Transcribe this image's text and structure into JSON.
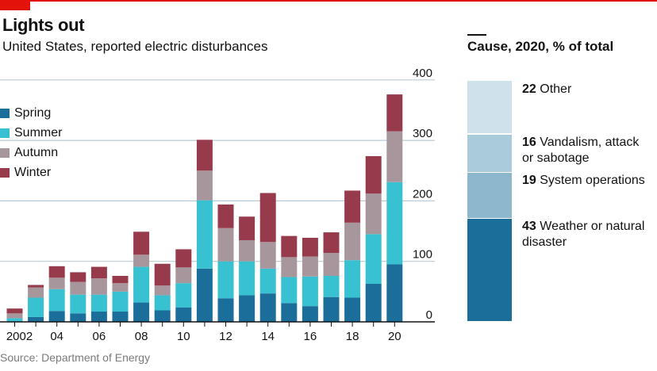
{
  "header": {
    "title": "Lights out",
    "subtitle": "United States, reported electric disturbances"
  },
  "source": "Source: Department of Energy",
  "colors": {
    "spring": "#1b6d9a",
    "summer": "#37c1d1",
    "autumn": "#a8969d",
    "winter": "#973b4c",
    "grid": "#b9cbd5",
    "axis": "#121212"
  },
  "chart_data": [
    {
      "type": "bar",
      "stacked": true,
      "categories": [
        "2002",
        "03",
        "04",
        "05",
        "06",
        "07",
        "08",
        "09",
        "10",
        "11",
        "12",
        "13",
        "14",
        "15",
        "16",
        "17",
        "18",
        "19",
        "20"
      ],
      "x_tick_labels": [
        "2002",
        "04",
        "06",
        "08",
        "10",
        "12",
        "14",
        "16",
        "18",
        "20"
      ],
      "series": [
        {
          "name": "Spring",
          "values": [
            1,
            8,
            18,
            14,
            17,
            17,
            32,
            19,
            24,
            88,
            39,
            44,
            47,
            31,
            26,
            41,
            40,
            63,
            95
          ]
        },
        {
          "name": "Summer",
          "values": [
            5,
            32,
            36,
            31,
            28,
            33,
            59,
            25,
            40,
            113,
            61,
            56,
            41,
            43,
            49,
            35,
            62,
            82,
            136
          ]
        },
        {
          "name": "Autumn",
          "values": [
            8,
            17,
            19,
            21,
            27,
            14,
            20,
            16,
            26,
            49,
            55,
            35,
            44,
            33,
            33,
            38,
            62,
            67,
            84
          ]
        },
        {
          "name": "Winter",
          "values": [
            8,
            4,
            19,
            16,
            19,
            12,
            38,
            36,
            30,
            51,
            39,
            39,
            81,
            35,
            31,
            34,
            53,
            62,
            61
          ]
        }
      ],
      "ylim": [
        0,
        400
      ],
      "yticks": [
        0,
        100,
        200,
        300,
        400
      ],
      "grid": true,
      "legend_position": "top-left"
    },
    {
      "type": "bar",
      "title": "Cause, 2020, % of total",
      "orientation": "stacked-column",
      "segments": [
        {
          "value": 43,
          "label": "Weather or natural disaster",
          "color": "#1b6d9a"
        },
        {
          "value": 19,
          "label": "System operations",
          "color": "#8cb7cc"
        },
        {
          "value": 16,
          "label": "Vandalism, attack or sabotage",
          "color": "#a9cbdc"
        },
        {
          "value": 22,
          "label": "Other",
          "color": "#cfe1ea"
        }
      ]
    }
  ]
}
